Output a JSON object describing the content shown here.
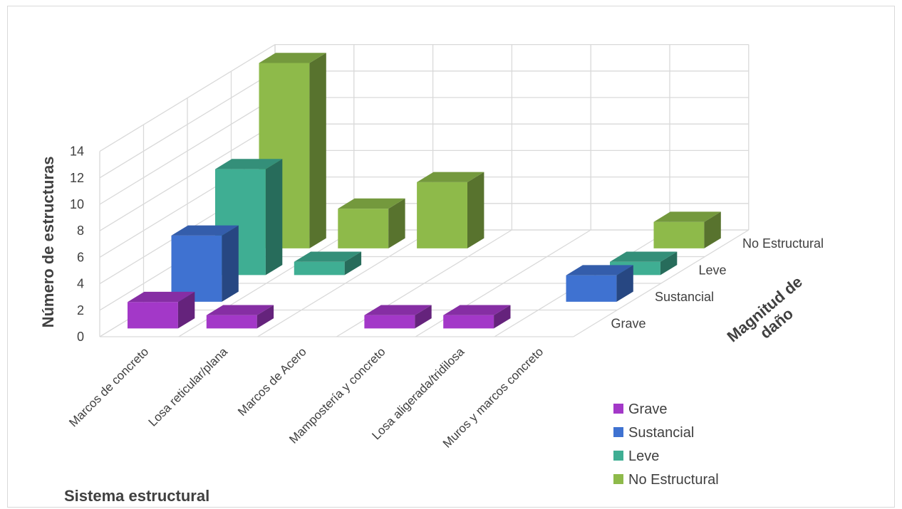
{
  "chart_data": {
    "type": "bar",
    "subtype": "3d-column",
    "categories": [
      "Marcos de concreto",
      "Losa reticular/plana",
      "Marcos de Acero",
      "Mampostería y concreto",
      "Losa aligerada/tridilosa",
      "Muros y marcos concreto"
    ],
    "series": [
      {
        "name": "Grave",
        "color": "#a338c8",
        "values": [
          2,
          1,
          0,
          1,
          1,
          0
        ]
      },
      {
        "name": "Sustancial",
        "color": "#3f72d1",
        "values": [
          5,
          0,
          0,
          0,
          0,
          2
        ]
      },
      {
        "name": "Leve",
        "color": "#3fae93",
        "values": [
          8,
          1,
          0,
          0,
          0,
          1
        ]
      },
      {
        "name": "No Estructural",
        "color": "#8eba4a",
        "values": [
          14,
          3,
          5,
          0,
          0,
          2
        ]
      }
    ],
    "ylabel": "Número de estructuras",
    "xlabel": "Sistema estructural",
    "zlabel": "Magnitud de daño",
    "ylim": [
      0,
      14
    ],
    "yticks": [
      "0",
      "2",
      "4",
      "6",
      "8",
      "10",
      "12",
      "14"
    ],
    "grid": true,
    "legend": "bottom-right"
  }
}
